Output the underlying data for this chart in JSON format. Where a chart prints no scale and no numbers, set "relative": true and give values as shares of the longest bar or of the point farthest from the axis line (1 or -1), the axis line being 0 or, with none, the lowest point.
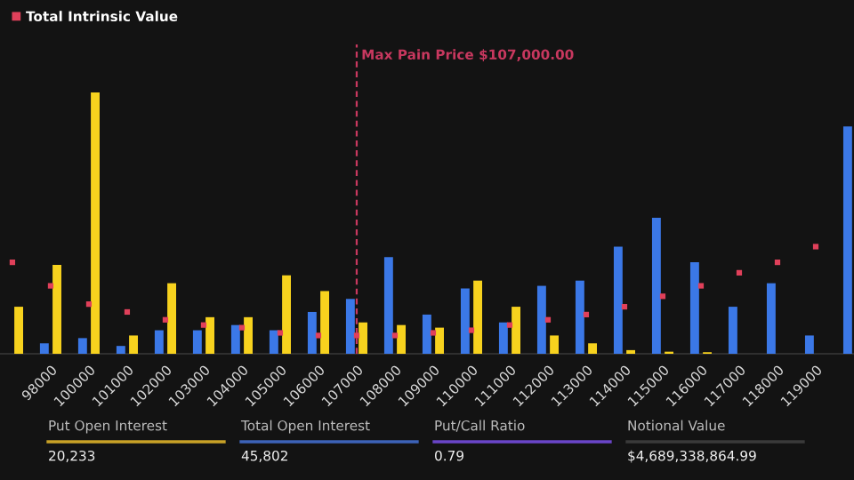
{
  "chart_data": [
    {
      "type": "bar",
      "relative": true,
      "categories": [
        null,
        "98000",
        "100000",
        "101000",
        "102000",
        "103000",
        "104000",
        "105000",
        "106000",
        "107000",
        "108000",
        "109000",
        "110000",
        "111000",
        "112000",
        "113000",
        "114000",
        "115000",
        "116000",
        "117000",
        "118000",
        "119000",
        null
      ],
      "series": [
        {
          "type": "bar",
          "color": "#3b78e7",
          "values": [
            null,
            0.04,
            0.06,
            0.03,
            0.09,
            0.09,
            0.11,
            0.09,
            0.16,
            0.21,
            0.37,
            0.15,
            0.25,
            0.12,
            0.26,
            0.28,
            0.41,
            0.52,
            0.35,
            0.18,
            0.27,
            0.07,
            0.87
          ]
        },
        {
          "type": "bar",
          "color": "#f7d21e",
          "values": [
            0.18,
            0.34,
            1.0,
            0.07,
            0.27,
            0.14,
            0.14,
            0.3,
            0.24,
            0.12,
            0.11,
            0.1,
            0.28,
            0.18,
            0.07,
            0.04,
            0.014,
            0.008,
            0.006,
            0,
            0,
            0,
            null
          ]
        },
        {
          "type": "scatter",
          "name": "Total Intrinsic Value",
          "color": "#e0405a",
          "marker": "square",
          "values": [
            0.35,
            0.26,
            0.19,
            0.16,
            0.13,
            0.11,
            0.1,
            0.08,
            0.07,
            0.07,
            0.07,
            0.08,
            0.09,
            0.11,
            0.13,
            0.15,
            0.18,
            0.22,
            0.26,
            0.31,
            0.35,
            0.41,
            null
          ]
        }
      ],
      "ref_lines": [
        {
          "axis": "x",
          "value": "107000",
          "label": "Max Pain Price $107,000.00",
          "color": "#c8385f",
          "line_style": "dashed"
        }
      ],
      "legend": "top left"
    },
    {
      "type": "other",
      "categories": [
        "Put Open Interest",
        "Total Open Interest",
        "Put/Call Ratio",
        "Notional Value"
      ],
      "value_labels": [
        "20,233",
        "45,802",
        "0.79",
        "$4,689,338,864.99"
      ],
      "colors": [
        "#c9a227",
        "#3d63b8",
        "#6a45c8",
        "#3a3a3a"
      ]
    }
  ]
}
